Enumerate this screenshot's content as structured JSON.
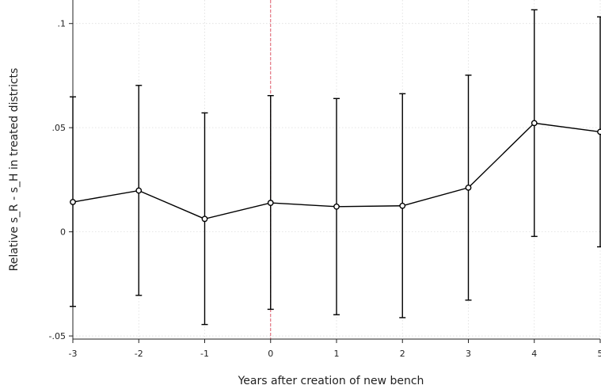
{
  "chart_data": {
    "type": "line",
    "title": "",
    "xlabel": "Years after creation of new bench",
    "ylabel": "Relative s_R - s_H in treated districts",
    "x": [
      -3,
      -2,
      -1,
      0,
      1,
      2,
      3,
      4,
      5
    ],
    "estimate": [
      0.0143,
      0.0198,
      0.0062,
      0.0139,
      0.0121,
      0.0125,
      0.0212,
      0.0522,
      0.048
    ],
    "ci_lower": [
      -0.0358,
      -0.0305,
      -0.0445,
      -0.0372,
      -0.0398,
      -0.0412,
      -0.0328,
      -0.0022,
      -0.0072
    ],
    "ci_upper": [
      0.0648,
      0.0703,
      0.0571,
      0.0654,
      0.064,
      0.0663,
      0.0752,
      0.1066,
      0.1032
    ],
    "xticks": [
      "-3",
      "-2",
      "-1",
      "0",
      "1",
      "2",
      "3",
      "4",
      "5"
    ],
    "yticks": [
      {
        "value": 0.1,
        "label": ".1"
      },
      {
        "value": 0.05,
        "label": ".05"
      },
      {
        "value": 0,
        "label": "0"
      },
      {
        "value": -0.05,
        "label": "-.05"
      }
    ],
    "xlim": [
      -3,
      5
    ],
    "ylim": [
      -0.0515,
      0.1113
    ],
    "reference_line": {
      "x": 0,
      "color": "#e05a6a",
      "style": "dashed"
    },
    "grid": true,
    "grid_color": "#dddddd",
    "line_color": "#000000"
  }
}
